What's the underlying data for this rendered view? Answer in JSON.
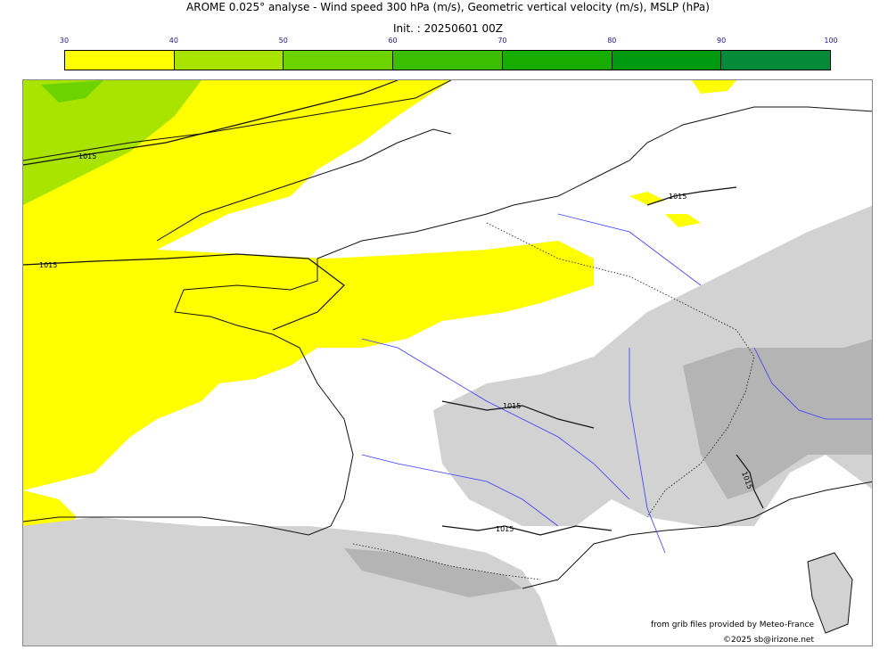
{
  "title": "AROME 0.025° analyse - Wind speed 300 hPa (m/s), Geometric vertical velocity (m/s), MSLP (hPa)",
  "subtitle": "Init. : 20250601 00Z",
  "colorbar": {
    "ticks": [
      "30",
      "40",
      "50",
      "60",
      "70",
      "80",
      "90",
      "100"
    ],
    "colors": [
      "#ffff00",
      "#a8e400",
      "#6cd200",
      "#3cbe00",
      "#18ac00",
      "#009a10",
      "#058a3a",
      "#0a7a50"
    ]
  },
  "map": {
    "isobar_labels": [
      "1015",
      "1015",
      "1015",
      "1015",
      "1015",
      "1015"
    ],
    "colors": {
      "sea": "#ffffff",
      "land": "#ffffff",
      "terrain": "#d2d2d2",
      "terrain_dark": "#b4b4b4",
      "river": "#3a3aff",
      "isobar": "#111111"
    }
  },
  "credits": {
    "source": "from grib files provided by Meteo-France",
    "copyright": "©2025 sb@irizone.net"
  }
}
